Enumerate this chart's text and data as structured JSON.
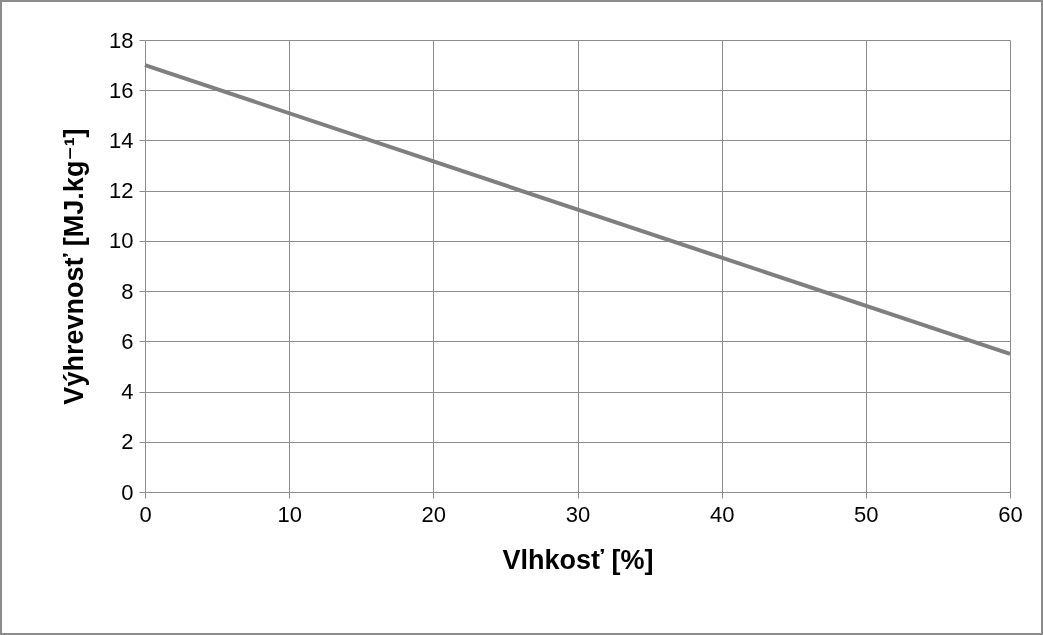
{
  "chart_data": {
    "type": "line",
    "xlabel": "Vlhkosť [%]",
    "ylabel": "Výhrevnosť  [MJ.kg⁻¹]",
    "x": [
      0,
      60
    ],
    "series": [
      {
        "color": "#7f7f7f",
        "values": [
          17,
          5.5
        ]
      }
    ],
    "xlim": [
      0,
      60
    ],
    "xticks": [
      0,
      10,
      20,
      30,
      40,
      50,
      60
    ],
    "ylim": [
      0,
      18
    ],
    "yticks": [
      0,
      2,
      4,
      6,
      8,
      10,
      12,
      14,
      16,
      18
    ],
    "grid": true,
    "marker": "none",
    "line_style": "solid"
  }
}
